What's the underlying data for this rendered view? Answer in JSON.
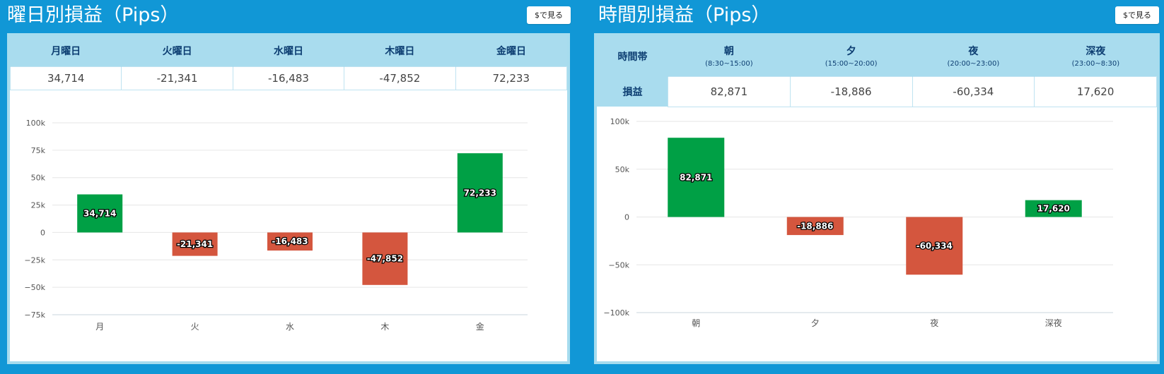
{
  "panels": [
    {
      "title": "曜日別損益（Pips）",
      "button_label": "$で見る",
      "headers": [
        "月曜日",
        "火曜日",
        "水曜日",
        "木曜日",
        "金曜日"
      ],
      "values": [
        "34,714",
        "-21,341",
        "-16,483",
        "-47,852",
        "72,233"
      ]
    },
    {
      "title": "時間別損益（Pips）",
      "button_label": "$で見る",
      "header_label": "時間帯",
      "row_label": "損益",
      "headers": [
        {
          "name": "朝",
          "range": "(8:30~15:00)"
        },
        {
          "name": "夕",
          "range": "(15:00~20:00)"
        },
        {
          "name": "夜",
          "range": "(20:00~23:00)"
        },
        {
          "name": "深夜",
          "range": "(23:00~8:30)"
        }
      ],
      "values": [
        "82,871",
        "-18,886",
        "-60,334",
        "17,620"
      ]
    }
  ],
  "chart_data": [
    {
      "type": "bar",
      "categories": [
        "月",
        "火",
        "水",
        "木",
        "金"
      ],
      "values": [
        34714,
        -21341,
        -16483,
        -47852,
        72233
      ],
      "data_labels": [
        "34,714",
        "-21,341",
        "-16,483",
        "-47,852",
        "72,233"
      ],
      "ylim": [
        -75000,
        100000
      ],
      "yticks": [
        100000,
        75000,
        50000,
        25000,
        0,
        -25000,
        -50000,
        -75000
      ],
      "ytick_labels": [
        "100k",
        "75k",
        "50k",
        "25k",
        "0",
        "−25k",
        "−50k",
        "−75k"
      ],
      "grid": true,
      "colors": {
        "positive": "#00a045",
        "negative": "#d4563e"
      }
    },
    {
      "type": "bar",
      "categories": [
        "朝",
        "夕",
        "夜",
        "深夜"
      ],
      "values": [
        82871,
        -18886,
        -60334,
        17620
      ],
      "data_labels": [
        "82,871",
        "-18,886",
        "-60,334",
        "17,620"
      ],
      "ylim": [
        -100000,
        100000
      ],
      "yticks": [
        100000,
        50000,
        0,
        -50000,
        -100000
      ],
      "ytick_labels": [
        "100k",
        "50k",
        "0",
        "−50k",
        "−100k"
      ],
      "grid": true,
      "colors": {
        "positive": "#00a045",
        "negative": "#d4563e"
      }
    }
  ]
}
